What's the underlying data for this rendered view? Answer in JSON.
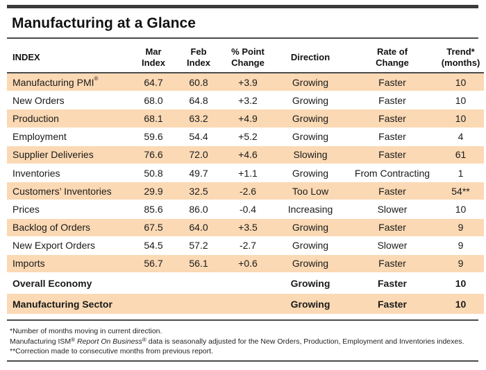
{
  "title": "Manufacturing at a Glance",
  "columns": {
    "index": "INDEX",
    "mar_l1": "Mar",
    "mar_l2": "Index",
    "feb_l1": "Feb",
    "feb_l2": "Index",
    "chg_l1": "% Point",
    "chg_l2": "Change",
    "direction": "Direction",
    "rate_l1": "Rate of",
    "rate_l2": "Change",
    "trend_l1": "Trend*",
    "trend_l2": "(months)"
  },
  "rows": [
    {
      "name": "Manufacturing PMI",
      "sup": "®",
      "mar": "64.7",
      "feb": "60.8",
      "change": "+3.9",
      "direction": "Growing",
      "rate": "Faster",
      "trend": "10"
    },
    {
      "name": "New Orders",
      "sup": "",
      "mar": "68.0",
      "feb": "64.8",
      "change": "+3.2",
      "direction": "Growing",
      "rate": "Faster",
      "trend": "10"
    },
    {
      "name": "Production",
      "sup": "",
      "mar": "68.1",
      "feb": "63.2",
      "change": "+4.9",
      "direction": "Growing",
      "rate": "Faster",
      "trend": "10"
    },
    {
      "name": "Employment",
      "sup": "",
      "mar": "59.6",
      "feb": "54.4",
      "change": "+5.2",
      "direction": "Growing",
      "rate": "Faster",
      "trend": "4"
    },
    {
      "name": "Supplier Deliveries",
      "sup": "",
      "mar": "76.6",
      "feb": "72.0",
      "change": "+4.6",
      "direction": "Slowing",
      "rate": "Faster",
      "trend": "61"
    },
    {
      "name": "Inventories",
      "sup": "",
      "mar": "50.8",
      "feb": "49.7",
      "change": "+1.1",
      "direction": "Growing",
      "rate": "From Contracting",
      "trend": "1"
    },
    {
      "name": "Customers’ Inventories",
      "sup": "",
      "mar": "29.9",
      "feb": "32.5",
      "change": "-2.6",
      "direction": "Too Low",
      "rate": "Faster",
      "trend": "54**"
    },
    {
      "name": "Prices",
      "sup": "",
      "mar": "85.6",
      "feb": "86.0",
      "change": "-0.4",
      "direction": "Increasing",
      "rate": "Slower",
      "trend": "10"
    },
    {
      "name": "Backlog of Orders",
      "sup": "",
      "mar": "67.5",
      "feb": "64.0",
      "change": "+3.5",
      "direction": "Growing",
      "rate": "Faster",
      "trend": "9"
    },
    {
      "name": "New Export Orders",
      "sup": "",
      "mar": "54.5",
      "feb": "57.2",
      "change": "-2.7",
      "direction": "Growing",
      "rate": "Slower",
      "trend": "9"
    },
    {
      "name": "Imports",
      "sup": "",
      "mar": "56.7",
      "feb": "56.1",
      "change": "+0.6",
      "direction": "Growing",
      "rate": "Faster",
      "trend": "9"
    }
  ],
  "summary": [
    {
      "name": "Overall Economy",
      "direction": "Growing",
      "rate": "Faster",
      "trend": "10"
    },
    {
      "name": "Manufacturing Sector",
      "direction": "Growing",
      "rate": "Faster",
      "trend": "10"
    }
  ],
  "notes": {
    "n1": "*Number of months moving in current direction.",
    "n2_a": "Manufacturing ISM",
    "n2_sup1": "®",
    "n2_b": " Report On Business",
    "n2_sup2": "®",
    "n2_c": " data is seasonally adjusted for the New Orders, Production, Employment and Inventories indexes.",
    "n3": "**Correction made to consecutive months from previous report."
  },
  "colors": {
    "band": "#fbd9b4",
    "rule": "#4a4a4a"
  }
}
